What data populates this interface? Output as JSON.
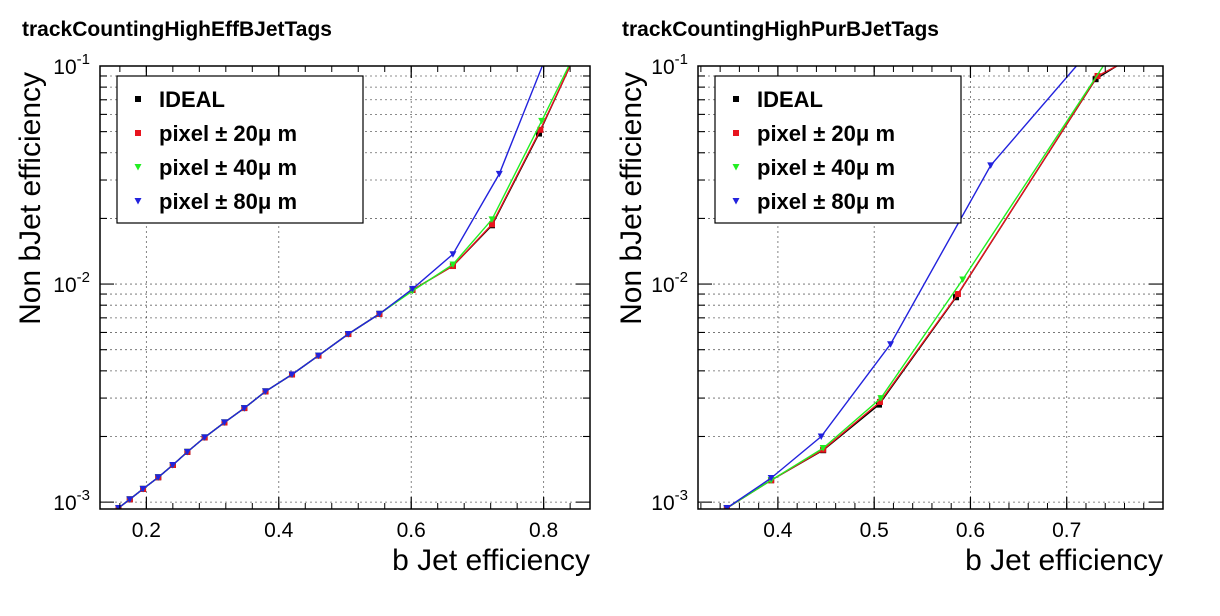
{
  "chart_data": [
    {
      "type": "line",
      "title": "trackCountingHighEffBJetTags",
      "xlabel": "b Jet efficiency",
      "ylabel": "Non bJet efficiency",
      "xlim": [
        0.13,
        0.87
      ],
      "ylim": [
        0.00093,
        0.1
      ],
      "yscale": "log",
      "grid": true,
      "legend_position": "top-left",
      "xticks": [
        0.2,
        0.4,
        0.6,
        0.8
      ],
      "xtick_labels": [
        "0.2",
        "0.4",
        "0.6",
        "0.8"
      ],
      "yticks": [
        0.001,
        0.01,
        0.1
      ],
      "ytick_labels": [
        {
          "base": "10",
          "exp": "-3"
        },
        {
          "base": "10",
          "exp": "-2"
        },
        {
          "base": "10",
          "exp": "-1"
        }
      ],
      "series": [
        {
          "name": "IDEAL",
          "color": "#000000",
          "marker": "square",
          "x": [
            0.158,
            0.175,
            0.195,
            0.218,
            0.24,
            0.262,
            0.288,
            0.318,
            0.348,
            0.38,
            0.42,
            0.46,
            0.505,
            0.552,
            0.602,
            0.663,
            0.722,
            0.793,
            0.84
          ],
          "y": [
            0.00094,
            0.00103,
            0.00115,
            0.0013,
            0.00148,
            0.0017,
            0.00198,
            0.00232,
            0.0027,
            0.00322,
            0.00385,
            0.0047,
            0.0059,
            0.0073,
            0.0094,
            0.0121,
            0.0186,
            0.049,
            0.1
          ]
        },
        {
          "name": "pixel ± 20μ m",
          "color": "#e8141e",
          "marker": "square",
          "x": [
            0.158,
            0.175,
            0.195,
            0.218,
            0.24,
            0.262,
            0.288,
            0.318,
            0.348,
            0.38,
            0.42,
            0.46,
            0.505,
            0.552,
            0.602,
            0.663,
            0.722,
            0.795,
            0.84
          ],
          "y": [
            0.00094,
            0.00103,
            0.00115,
            0.0013,
            0.00148,
            0.0017,
            0.00198,
            0.00232,
            0.0027,
            0.00322,
            0.00385,
            0.0047,
            0.0059,
            0.0073,
            0.0094,
            0.0121,
            0.0188,
            0.051,
            0.1
          ]
        },
        {
          "name": "pixel ± 40μ m",
          "color": "#22ee22",
          "marker": "triangle-down",
          "x": [
            0.158,
            0.175,
            0.195,
            0.218,
            0.24,
            0.262,
            0.288,
            0.318,
            0.348,
            0.38,
            0.42,
            0.46,
            0.505,
            0.552,
            0.602,
            0.663,
            0.722,
            0.797,
            0.838
          ],
          "y": [
            0.00094,
            0.00103,
            0.00115,
            0.0013,
            0.00148,
            0.0017,
            0.00198,
            0.00232,
            0.0027,
            0.00322,
            0.00385,
            0.0047,
            0.0059,
            0.0073,
            0.0093,
            0.0123,
            0.0198,
            0.056,
            0.1
          ]
        },
        {
          "name": "pixel ± 80μ m",
          "color": "#2222dd",
          "marker": "triangle-down",
          "x": [
            0.158,
            0.175,
            0.195,
            0.218,
            0.24,
            0.262,
            0.288,
            0.318,
            0.348,
            0.38,
            0.42,
            0.46,
            0.505,
            0.552,
            0.602,
            0.663,
            0.733,
            0.798
          ],
          "y": [
            0.00094,
            0.00103,
            0.00115,
            0.0013,
            0.00148,
            0.0017,
            0.00198,
            0.00232,
            0.0027,
            0.00322,
            0.00385,
            0.0047,
            0.0059,
            0.0073,
            0.0095,
            0.0137,
            0.032,
            0.1
          ]
        }
      ]
    },
    {
      "type": "line",
      "title": "trackCountingHighPurBJetTags",
      "xlabel": "b Jet efficiency",
      "ylabel": "Non bJet efficiency",
      "xlim": [
        0.317,
        0.8
      ],
      "ylim": [
        0.00093,
        0.1
      ],
      "yscale": "log",
      "grid": true,
      "legend_position": "top-left",
      "xticks": [
        0.4,
        0.5,
        0.6,
        0.7
      ],
      "xtick_labels": [
        "0.4",
        "0.5",
        "0.6",
        "0.7"
      ],
      "yticks": [
        0.001,
        0.01,
        0.1
      ],
      "ytick_labels": [
        {
          "base": "10",
          "exp": "-3"
        },
        {
          "base": "10",
          "exp": "-2"
        },
        {
          "base": "10",
          "exp": "-1"
        }
      ],
      "series": [
        {
          "name": "IDEAL",
          "color": "#000000",
          "marker": "square",
          "x": [
            0.347,
            0.393,
            0.447,
            0.505,
            0.585,
            0.73,
            0.752
          ],
          "y": [
            0.00094,
            0.00126,
            0.00173,
            0.0028,
            0.0087,
            0.087,
            0.1
          ]
        },
        {
          "name": "pixel ± 20μ m",
          "color": "#e8141e",
          "marker": "square",
          "x": [
            0.347,
            0.393,
            0.447,
            0.506,
            0.587,
            0.732,
            0.752
          ],
          "y": [
            0.00094,
            0.00126,
            0.00174,
            0.00288,
            0.009,
            0.09,
            0.1
          ]
        },
        {
          "name": "pixel ± 40μ m",
          "color": "#22ee22",
          "marker": "triangle-down",
          "x": [
            0.347,
            0.393,
            0.447,
            0.507,
            0.592,
            0.738
          ],
          "y": [
            0.00094,
            0.00126,
            0.00177,
            0.003,
            0.0105,
            0.1
          ]
        },
        {
          "name": "pixel ± 80μ m",
          "color": "#2222dd",
          "marker": "triangle-down",
          "x": [
            0.347,
            0.393,
            0.445,
            0.517,
            0.621,
            0.71
          ],
          "y": [
            0.00094,
            0.00129,
            0.002,
            0.0053,
            0.035,
            0.1
          ]
        }
      ]
    }
  ]
}
